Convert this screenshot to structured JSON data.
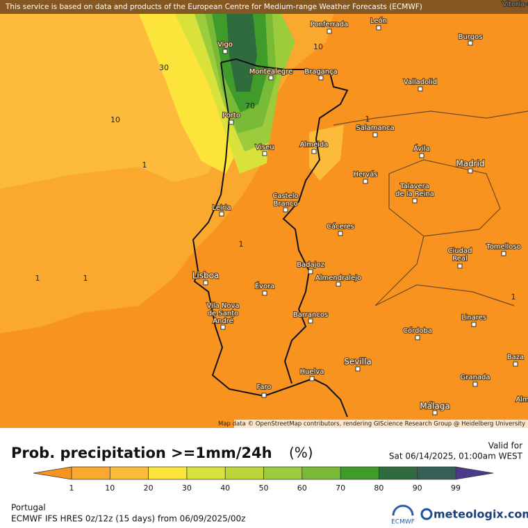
{
  "header": {
    "notice": "This service is based on data and products of the European Centre for Medium-range Weather Forecasts (ECMWF)"
  },
  "map": {
    "attribution": "Map data © OpenStreetMap contributors, rendering GIScience Research Group @ Heidelberg University",
    "cities": [
      [
        "Vitoria-G"
      ],
      [
        "Ponferrada"
      ],
      [
        "León"
      ],
      [
        "Burgos"
      ],
      [
        "Vigo"
      ],
      [
        "Montealegre"
      ],
      [
        "Bragança"
      ],
      [
        "Valladolid"
      ],
      [
        "Porto"
      ],
      [
        "Salamanca"
      ],
      [
        "Almeida"
      ],
      [
        "Viseu"
      ],
      [
        "Ávila"
      ],
      [
        "Madrid"
      ],
      [
        "Hervás"
      ],
      [
        "Talavera",
        "de la Reina"
      ],
      [
        "Castelo",
        "Branco"
      ],
      [
        "Leiria"
      ],
      [
        "Cáceres"
      ],
      [
        "Ciudad",
        "Real"
      ],
      [
        "Tomelloso"
      ],
      [
        "Badajoz"
      ],
      [
        "Lisboa"
      ],
      [
        "Almendralejo"
      ],
      [
        "Évora"
      ],
      [
        "Vila Nova",
        "de Santo",
        "André"
      ],
      [
        "Barrancos"
      ],
      [
        "Linares"
      ],
      [
        "Córdoba"
      ],
      [
        "Sevilla"
      ],
      [
        "Baza"
      ],
      [
        "Huelva"
      ],
      [
        "Granada"
      ],
      [
        "Faro"
      ],
      [
        "Málaga"
      ],
      [
        "Alm"
      ]
    ],
    "contour_labels": [
      30,
      10,
      1,
      70,
      10,
      1,
      1,
      1,
      1,
      1
    ]
  },
  "legend": {
    "title": "Prob. precipitation >=1mm/24h",
    "unit": "(%)",
    "ticks": [
      1,
      10,
      20,
      30,
      40,
      50,
      60,
      70,
      80,
      90,
      99
    ],
    "colors": [
      "#f7931e",
      "#fba82f",
      "#fdbb3b",
      "#fde43a",
      "#d8e23a",
      "#bcd63a",
      "#9ccb3b",
      "#79bb36",
      "#3f9c2a",
      "#2e6c3e",
      "#365f55",
      "#4b3a8c"
    ]
  },
  "valid": {
    "label": "Valid for",
    "time": "Sat 06/14/2025, 01:00am WEST"
  },
  "footer": {
    "region": "Portugal",
    "model": "ECMWF IFS HRES 0z/12z (15 days) from  06/09/2025/00z",
    "ecmwf": "ECMWF",
    "brand": "meteologix.com"
  }
}
